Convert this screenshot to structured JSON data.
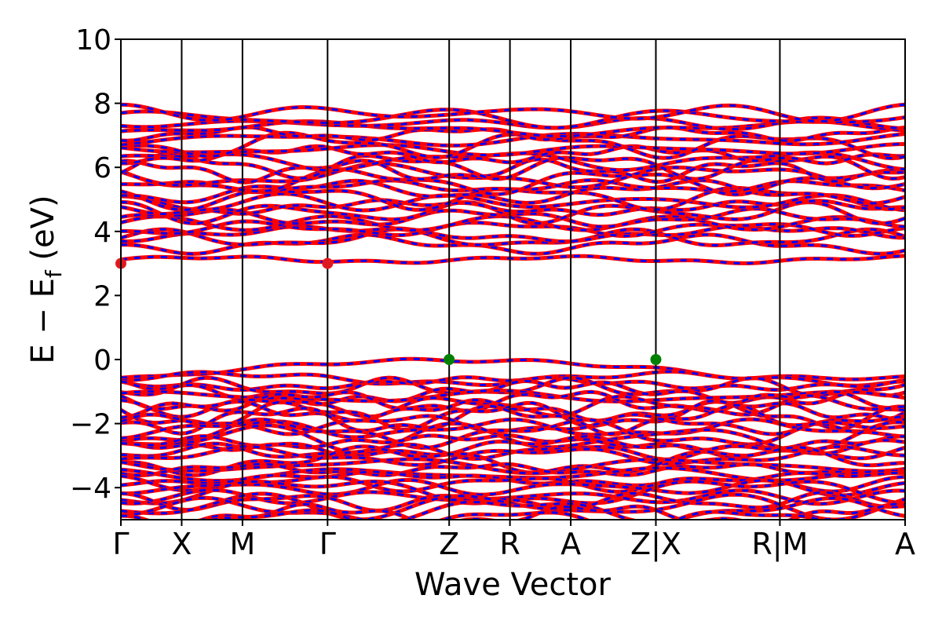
{
  "chart_data": {
    "type": "line",
    "title": "",
    "xlabel": "Wave Vector",
    "ylabel_main": "E − E",
    "ylabel_sub": "f",
    "ylabel_unit": " (eV)",
    "ylim": [
      -5,
      10
    ],
    "yticks": [
      {
        "value": -4,
        "label": "−4"
      },
      {
        "value": -2,
        "label": "−2"
      },
      {
        "value": 0,
        "label": "0"
      },
      {
        "value": 2,
        "label": "2"
      },
      {
        "value": 4,
        "label": "4"
      },
      {
        "value": 6,
        "label": "6"
      },
      {
        "value": 8,
        "label": "8"
      },
      {
        "value": 10,
        "label": "10"
      }
    ],
    "kpath_cumulative": [
      0,
      0.5,
      1.0,
      1.7,
      2.7,
      3.2,
      3.7,
      4.4,
      5.42,
      6.45
    ],
    "kpoint_labels": [
      "Γ",
      "X",
      "M",
      "Γ",
      "Z",
      "R",
      "A",
      "Z|X",
      "R|M",
      "A"
    ],
    "breaks_at_index": [
      7,
      8
    ],
    "band_colors": {
      "spin_up": "#ff0000",
      "spin_down": "#0000ff"
    },
    "valence_band_max": {
      "energy": 0.0,
      "k_index": [
        4,
        7
      ],
      "color": "#008000"
    },
    "conduction_band_min": {
      "energy": 3.0,
      "k_index": [
        0,
        3
      ],
      "color": "#e0191e"
    },
    "conduction_band_range": [
      3.0,
      7.8
    ],
    "valence_band_range": [
      -5.0,
      0.0
    ],
    "grid": false,
    "legend": "none"
  }
}
